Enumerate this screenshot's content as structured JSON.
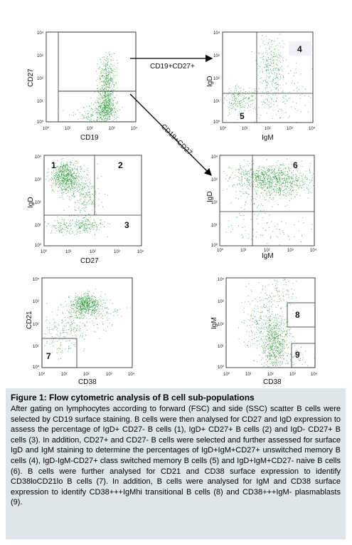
{
  "figure": {
    "panels": [
      {
        "id": "p1",
        "xlabel": "CD19",
        "ylabel": "CD27",
        "xticks": [
          "10⁰",
          "10¹",
          "10²",
          "10³",
          "10⁴"
        ],
        "yticks": [
          "10⁰",
          "10¹",
          "10²",
          "10³",
          "10⁴"
        ],
        "quadrant_numbers": []
      },
      {
        "id": "p2",
        "xlabel": "IgM",
        "ylabel": "IgD",
        "xticks": [
          "10⁰",
          "10¹",
          "10²",
          "10³",
          "10⁴"
        ],
        "yticks": [
          "10⁰",
          "10¹",
          "10²",
          "10³",
          "10⁴"
        ],
        "quadrant_numbers": [
          "4",
          "5"
        ]
      },
      {
        "id": "p3",
        "xlabel": "CD27",
        "ylabel": "IgD",
        "xticks": [
          "10⁰",
          "10¹",
          "10²",
          "10³",
          "10⁴"
        ],
        "yticks": [
          "10⁰",
          "10¹",
          "10²",
          "10³",
          "10⁴"
        ],
        "quadrant_numbers": [
          "1",
          "2",
          "3"
        ]
      },
      {
        "id": "p4",
        "xlabel": "IgM",
        "ylabel": "IgD",
        "xticks": [
          "10⁰",
          "10¹",
          "10²",
          "10³",
          "10⁴"
        ],
        "yticks": [
          "10⁰",
          "10¹",
          "10²",
          "10³",
          "10⁴"
        ],
        "quadrant_numbers": [
          "6"
        ]
      },
      {
        "id": "p5",
        "xlabel": "CD38",
        "ylabel": "CD21",
        "xticks": [
          "10⁰",
          "10¹",
          "10²",
          "10³",
          "10⁴"
        ],
        "yticks": [
          "10⁰",
          "10¹",
          "10²",
          "10³",
          "10⁴"
        ],
        "quadrant_numbers": [
          "7"
        ]
      },
      {
        "id": "p6",
        "xlabel": "CD38",
        "ylabel": "IgM",
        "xticks": [
          "10⁰",
          "10¹",
          "10²",
          "10³",
          "10⁴"
        ],
        "yticks": [
          "10⁰",
          "10¹",
          "10²",
          "10³",
          "10⁴"
        ],
        "quadrant_numbers": [
          "8",
          "9"
        ]
      }
    ],
    "arrow_labels": [
      "CD19+CD27+",
      "CD19+CD27-"
    ],
    "dot_color": "#2e9a3a"
  },
  "caption": {
    "title": "Figure 1: Flow cytometric analysis of B cell sub-populations",
    "text": "After gating on lymphocytes according to forward (FSC) and side (SSC) scatter B cells were selected by CD19 surface staining. B cells were then analysed for CD27 and IgD expression to assess the percentage of IgD+ CD27- B cells (1), IgD+ CD27+ B cells (2) and IgD- CD27+ B cells (3). In addition, CD27+ and CD27- B cells were selected and further assessed for surface IgD and IgM staining to determine the percentages of IgD+IgM+CD27+ unswitched memory B cells (4), IgD-IgM-CD27+ class switched memory B cells (5) and IgD+IgM+CD27- naive B cells (6). B cells were further analysed for CD21 and CD38 surface expression to identify CD38loCD21lo B cells (7). In addition, B cells were analysed for IgM and CD38 surface expression to identify CD38+++IgMhi transitional B cells (8) and CD38+++IgM- plasmablasts (9).",
    "background": "#dfe6ea"
  }
}
